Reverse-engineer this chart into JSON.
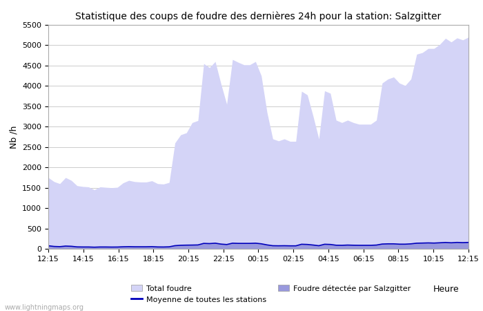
{
  "title": "Statistique des coups de foudre des dernières 24h pour la station: Salzgitter",
  "xlabel": "Heure",
  "ylabel": "Nb /h",
  "watermark": "www.lightningmaps.org",
  "x_labels": [
    "12:15",
    "14:15",
    "16:15",
    "18:15",
    "20:15",
    "22:15",
    "00:15",
    "02:15",
    "04:15",
    "06:15",
    "08:15",
    "10:15",
    "12:15"
  ],
  "ylim": [
    0,
    5500
  ],
  "yticks": [
    0,
    500,
    1000,
    1500,
    2000,
    2500,
    3000,
    3500,
    4000,
    4500,
    5000,
    5500
  ],
  "total_foudre_color": "#d4d4f7",
  "local_foudre_color": "#9999dd",
  "moyenne_color": "#0000bb",
  "bg_color": "#ffffff",
  "plot_bg_color": "#ffffff",
  "grid_color": "#cccccc",
  "total_foudre": [
    1750,
    1650,
    1600,
    1750,
    1680,
    1550,
    1530,
    1520,
    1450,
    1520,
    1510,
    1500,
    1510,
    1620,
    1680,
    1650,
    1640,
    1640,
    1670,
    1600,
    1590,
    1630,
    2600,
    2800,
    2850,
    3100,
    3150,
    4550,
    4450,
    4600,
    4050,
    3550,
    4650,
    4580,
    4520,
    4520,
    4600,
    4250,
    3350,
    2700,
    2650,
    2700,
    2640,
    2640,
    3870,
    3780,
    3260,
    2700,
    3880,
    3820,
    3160,
    3100,
    3160,
    3100,
    3060,
    3060,
    3060,
    3160,
    4070,
    4170,
    4220,
    4070,
    4010,
    4170,
    4780,
    4820,
    4920,
    4920,
    5020,
    5170,
    5080,
    5180,
    5130,
    5200
  ],
  "local_foudre": [
    80,
    60,
    55,
    70,
    65,
    50,
    48,
    48,
    42,
    48,
    48,
    45,
    47,
    52,
    55,
    52,
    52,
    52,
    55,
    48,
    47,
    51,
    80,
    90,
    92,
    95,
    98,
    140,
    135,
    145,
    122,
    110,
    145,
    140,
    140,
    140,
    145,
    130,
    100,
    80,
    78,
    80,
    77,
    77,
    118,
    113,
    98,
    80,
    118,
    113,
    93,
    90,
    97,
    93,
    90,
    90,
    90,
    97,
    123,
    128,
    128,
    120,
    120,
    128,
    145,
    148,
    152,
    148,
    156,
    164,
    156,
    165,
    160,
    165
  ],
  "moyenne": [
    75,
    58,
    53,
    67,
    62,
    47,
    45,
    45,
    40,
    45,
    45,
    43,
    44,
    50,
    53,
    50,
    50,
    50,
    53,
    46,
    45,
    49,
    77,
    87,
    90,
    92,
    95,
    133,
    128,
    138,
    116,
    105,
    138,
    133,
    133,
    133,
    138,
    123,
    96,
    76,
    74,
    76,
    73,
    73,
    112,
    107,
    93,
    76,
    112,
    107,
    88,
    86,
    92,
    88,
    86,
    86,
    86,
    92,
    117,
    122,
    122,
    114,
    114,
    122,
    138,
    141,
    145,
    141,
    148,
    156,
    148,
    157,
    152,
    157
  ]
}
